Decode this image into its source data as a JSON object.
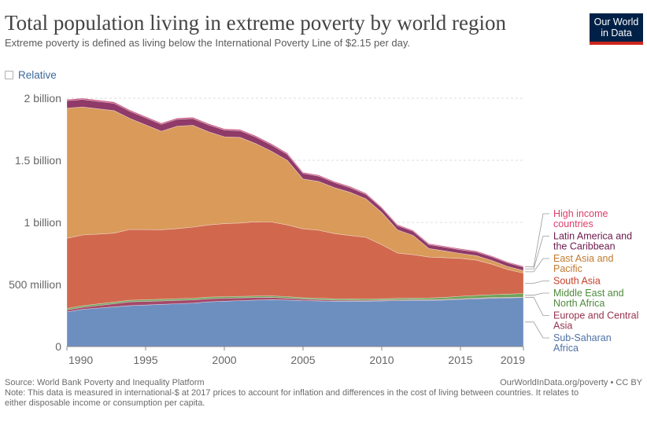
{
  "header": {
    "title": "Total population living in extreme poverty by world region",
    "subtitle": "Extreme poverty is defined as living below the International Poverty Line of $2.15 per day."
  },
  "logo": {
    "line1": "Our World",
    "line2": "in Data"
  },
  "toggle": {
    "label": "Relative"
  },
  "footer": {
    "source": "Source: World Bank Poverty and Inequality Platform",
    "credit": "OurWorldInData.org/poverty • CC BY",
    "note_line1": "Note: This data is measured in international-$ at 2017 prices to account for inflation and differences in the cost of living between countries. It relates to",
    "note_line2": "either disposable income or consumption per capita."
  },
  "chart_data": {
    "type": "area",
    "stacked": true,
    "title": "Total population living in extreme poverty by world region",
    "x": [
      1990,
      1991,
      1993,
      1994,
      1996,
      1997,
      1998,
      1999,
      2000,
      2001,
      2002,
      2003,
      2004,
      2005,
      2006,
      2007,
      2008,
      2009,
      2010,
      2011,
      2012,
      2013,
      2014,
      2015,
      2016,
      2017,
      2018,
      2019
    ],
    "ylim": [
      0,
      2000000000
    ],
    "yticks": [
      {
        "value": 0,
        "label": "0"
      },
      {
        "value": 500000000,
        "label": "500 million"
      },
      {
        "value": 1000000000,
        "label": "1 billion"
      },
      {
        "value": 1500000000,
        "label": "1.5 billion"
      },
      {
        "value": 2000000000,
        "label": "2 billion"
      }
    ],
    "xticks": [
      1990,
      1995,
      2000,
      2005,
      2010,
      2015,
      2019
    ],
    "series": [
      {
        "name": "Sub-Saharan Africa",
        "label_lines": [
          "Sub-Saharan",
          "Africa"
        ],
        "color": "#6d8fc0",
        "label_color": "#4e71a8",
        "values": [
          280000000,
          300000000,
          320000000,
          330000000,
          340000000,
          345000000,
          350000000,
          360000000,
          365000000,
          370000000,
          375000000,
          378000000,
          375000000,
          370000000,
          368000000,
          365000000,
          365000000,
          365000000,
          368000000,
          370000000,
          372000000,
          372000000,
          375000000,
          380000000,
          385000000,
          390000000,
          392000000,
          395000000
        ]
      },
      {
        "name": "Europe and Central Asia",
        "label_lines": [
          "Europe and Central",
          "Asia"
        ],
        "color": "#a4496a",
        "label_color": "#96324f",
        "values": [
          15000000,
          17000000,
          25000000,
          30000000,
          28000000,
          27000000,
          26000000,
          25000000,
          24000000,
          22000000,
          20000000,
          18000000,
          15000000,
          12000000,
          10000000,
          9000000,
          8000000,
          7000000,
          6000000,
          6000000,
          5000000,
          5000000,
          5000000,
          5000000,
          5000000,
          4000000,
          4000000,
          4000000
        ]
      },
      {
        "name": "Middle East and North Africa",
        "label_lines": [
          "Middle East and",
          "North Africa"
        ],
        "color": "#6fa35a",
        "label_color": "#4f8a3c",
        "values": [
          12000000,
          12000000,
          13000000,
          13000000,
          13000000,
          13000000,
          13000000,
          13000000,
          13000000,
          12000000,
          12000000,
          12000000,
          12000000,
          11000000,
          11000000,
          11000000,
          11000000,
          11000000,
          11000000,
          12000000,
          13000000,
          14000000,
          16000000,
          20000000,
          22000000,
          24000000,
          26000000,
          28000000
        ]
      },
      {
        "name": "South Asia",
        "label_lines": [
          "South Asia"
        ],
        "color": "#d1684e",
        "label_color": "#c4402a",
        "values": [
          565000000,
          570000000,
          555000000,
          570000000,
          560000000,
          565000000,
          573000000,
          582000000,
          588000000,
          591000000,
          598000000,
          595000000,
          578000000,
          555000000,
          548000000,
          525000000,
          510000000,
          497000000,
          435000000,
          365000000,
          350000000,
          330000000,
          320000000,
          305000000,
          285000000,
          245000000,
          198000000,
          165000000
        ]
      },
      {
        "name": "East Asia and Pacific",
        "label_lines": [
          "East Asia and",
          "Pacific"
        ],
        "color": "#d99a5a",
        "label_color": "#c27a2e",
        "values": [
          1048000000,
          1031000000,
          987000000,
          895000000,
          793000000,
          825000000,
          820000000,
          750000000,
          700000000,
          690000000,
          630000000,
          570000000,
          520000000,
          402000000,
          393000000,
          370000000,
          348000000,
          310000000,
          260000000,
          187000000,
          155000000,
          68000000,
          54000000,
          40000000,
          35000000,
          30000000,
          25000000,
          20000000
        ]
      },
      {
        "name": "Latin America and the Caribbean",
        "label_lines": [
          "Latin America and",
          "the Caribbean"
        ],
        "color": "#8f3a68",
        "label_color": "#6b1a4c",
        "values": [
          60000000,
          60000000,
          59000000,
          57000000,
          56000000,
          55000000,
          55000000,
          55000000,
          54000000,
          53000000,
          52000000,
          50000000,
          48000000,
          45000000,
          42000000,
          40000000,
          38000000,
          36000000,
          35000000,
          34000000,
          33000000,
          32000000,
          31000000,
          30000000,
          30000000,
          29000000,
          29000000,
          28000000
        ]
      },
      {
        "name": "High income countries",
        "label_lines": [
          "High income",
          "countries"
        ],
        "color": "#c9527c",
        "label_color": "#dd3d6a",
        "values": [
          10000000,
          10000000,
          11000000,
          10000000,
          10000000,
          10000000,
          10000000,
          10000000,
          10000000,
          10000000,
          10000000,
          10000000,
          10000000,
          9000000,
          9000000,
          9000000,
          9000000,
          9000000,
          8000000,
          8000000,
          8000000,
          8000000,
          8000000,
          8000000,
          8000000,
          8000000,
          7000000,
          7000000
        ]
      }
    ]
  }
}
